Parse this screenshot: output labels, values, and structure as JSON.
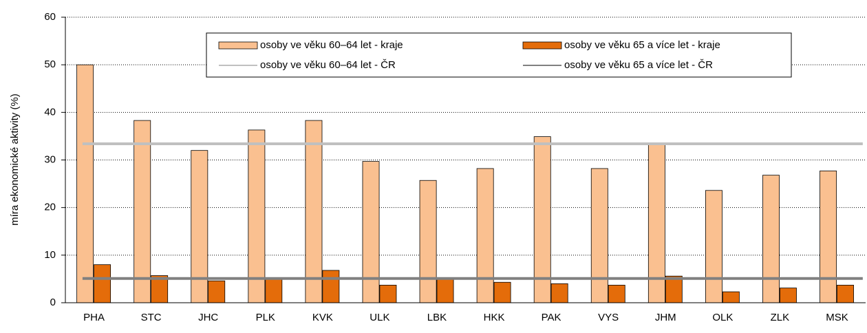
{
  "chart_data": {
    "type": "bar",
    "y_label": "míra ekonomické aktivity (%)",
    "categories": [
      "PHA",
      "STC",
      "JHC",
      "PLK",
      "KVK",
      "ULK",
      "LBK",
      "HKK",
      "PAK",
      "VYS",
      "JHM",
      "OLK",
      "ZLK",
      "MSK"
    ],
    "series": [
      {
        "name": "osoby ve věku 60–64 let - kraje",
        "color": "#fac090",
        "values": [
          50,
          38.3,
          32,
          36.3,
          38.3,
          29.7,
          25.7,
          28.2,
          34.9,
          28.2,
          33.5,
          23.6,
          26.8,
          27.7
        ]
      },
      {
        "name": "osoby ve věku 65 a více let - kraje",
        "color": "#e46c0a",
        "values": [
          8.0,
          5.7,
          4.6,
          5.0,
          6.8,
          3.7,
          5.0,
          4.3,
          4.0,
          3.7,
          5.6,
          2.3,
          3.1,
          3.7
        ]
      }
    ],
    "reference_lines": [
      {
        "name": "osoby ve věku 60–64 let - ČR",
        "color": "#c0c0c0",
        "value": 33.4
      },
      {
        "name": "osoby ve věku 65 a více let - ČR",
        "color": "#808080",
        "value": 5.1
      }
    ],
    "ylim": [
      0,
      60
    ],
    "yticks": [
      0,
      10,
      20,
      30,
      40,
      50,
      60
    ],
    "grid": true
  }
}
